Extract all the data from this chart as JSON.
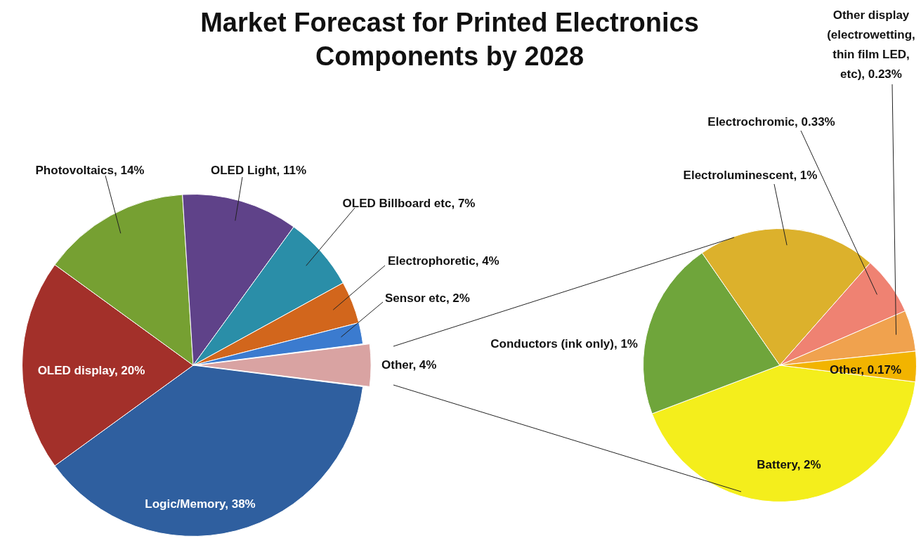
{
  "chart_data": [
    {
      "type": "pie",
      "title": "Market Forecast for Printed Electronics Components by 2028",
      "categories": [
        "Logic/Memory",
        "OLED display",
        "Photovoltaics",
        "OLED Light",
        "OLED Billboard etc",
        "Electrophoretic",
        "Sensor etc",
        "Other"
      ],
      "values": [
        38,
        20,
        14,
        11,
        7,
        4,
        2,
        4
      ],
      "value_labels": [
        "38%",
        "20%",
        "14%",
        "11%",
        "7%",
        "4%",
        "2%",
        "4%"
      ],
      "colors": [
        "#2f5f9f",
        "#a3302a",
        "#76a032",
        "#5f4289",
        "#2a8ea8",
        "#d2661c",
        "#3b7bcf",
        "#d9a3a2"
      ]
    },
    {
      "type": "pie",
      "categories": [
        "Battery",
        "Conductors (ink only)",
        "Electroluminescent",
        "Electrochromic",
        "Other display (electrowetting, thin film LED, etc)",
        "Other"
      ],
      "values": [
        2,
        1,
        1,
        0.33,
        0.23,
        0.17
      ],
      "value_labels": [
        "2%",
        "1%",
        "1%",
        "0.33%",
        "0.23%",
        "0.17%"
      ],
      "colors": [
        "#f4ee1c",
        "#6fa53b",
        "#dcb12c",
        "#ef8272",
        "#f0a24e",
        "#f2b400"
      ]
    }
  ]
}
